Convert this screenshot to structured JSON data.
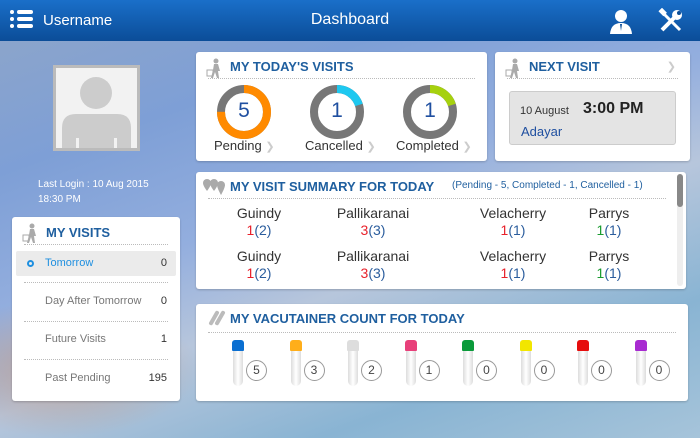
{
  "header": {
    "username": "Username",
    "title": "Dashboard",
    "menu_icon": "menu-icon",
    "profile_icon": "user-icon",
    "settings_icon": "tools-icon"
  },
  "profile": {
    "last_login_line1": "Last Login : 10 Aug 2015",
    "last_login_line2": "18:30 PM"
  },
  "my_visits": {
    "title": "MY VISITS",
    "items": [
      {
        "label": "Tomorrow",
        "count": "0",
        "active": true
      },
      {
        "label": "Day After Tomorrow",
        "count": "0"
      },
      {
        "label": "Future Visits",
        "count": "1"
      },
      {
        "label": "Past Pending",
        "count": "195"
      }
    ]
  },
  "todays_visits": {
    "title": "MY TODAY'S VISITS",
    "stats": [
      {
        "label": "Pending",
        "value": "5",
        "fraction": 0.75,
        "color": "#ff8a00"
      },
      {
        "label": "Cancelled",
        "value": "1",
        "fraction": 0.2,
        "color": "#1ec8f0"
      },
      {
        "label": "Completed",
        "value": "1",
        "fraction": 0.2,
        "color": "#a6d10e"
      }
    ]
  },
  "next_visit": {
    "title": "NEXT VISIT",
    "date": "10 August",
    "time": "3:00 PM",
    "location": "Adayar"
  },
  "summary": {
    "title": "MY VISIT SUMMARY FOR TODAY",
    "subtitle": "(Pending - 5, Completed - 1, Cancelled - 1)",
    "rows": [
      [
        {
          "city": "Guindy",
          "count": "1",
          "total": "(2)",
          "color": "red"
        },
        {
          "city": "Pallikaranai",
          "count": "3",
          "total": "(3)",
          "color": "red"
        },
        {
          "city": "Velacherry",
          "count": "1",
          "total": "(1)",
          "color": "red"
        },
        {
          "city": "Parrys",
          "count": "1",
          "total": "(1)",
          "color": "green"
        }
      ],
      [
        {
          "city": "Guindy",
          "count": "1",
          "total": "(2)",
          "color": "red"
        },
        {
          "city": "Pallikaranai",
          "count": "3",
          "total": "(3)",
          "color": "red"
        },
        {
          "city": "Velacherry",
          "count": "1",
          "total": "(1)",
          "color": "red"
        },
        {
          "city": "Parrys",
          "count": "1",
          "total": "(1)",
          "color": "green"
        }
      ]
    ]
  },
  "vacutainer": {
    "title": "MY VACUTAINER COUNT FOR TODAY",
    "tubes": [
      {
        "color": "#0b6fd1",
        "count": "5"
      },
      {
        "color": "#ffae1a",
        "count": "3"
      },
      {
        "color": "#dddddd",
        "count": "2"
      },
      {
        "color": "#e8407a",
        "count": "1"
      },
      {
        "color": "#0a9a3a",
        "count": "0"
      },
      {
        "color": "#f2e600",
        "count": "0"
      },
      {
        "color": "#e60d0d",
        "count": "0"
      },
      {
        "color": "#a82bd1",
        "count": "0"
      }
    ]
  }
}
